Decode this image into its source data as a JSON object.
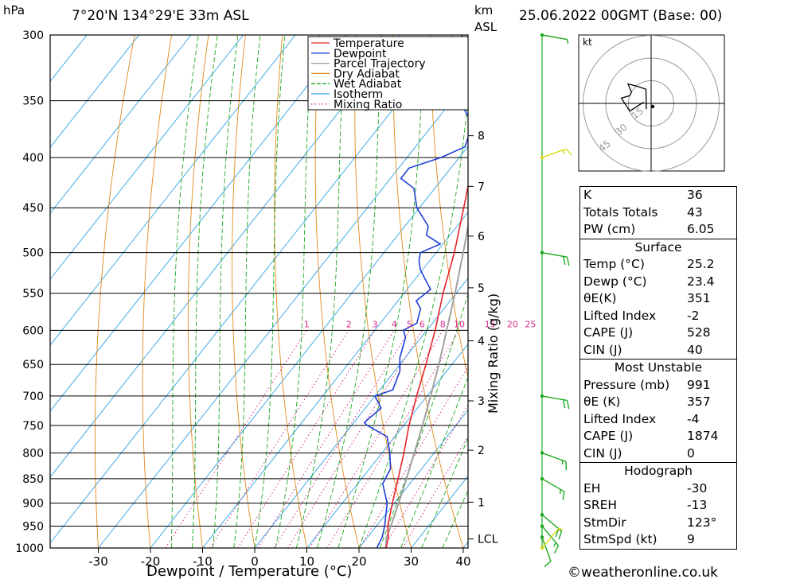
{
  "header": {
    "pressure_unit": "hPa",
    "location": "7°20'N  134°29'E  33m  ASL",
    "height_unit_top": "km",
    "height_unit_bottom": "ASL",
    "datetime": "25.06.2022  00GMT  (Base: 00)"
  },
  "footer": {
    "copyright": "©weatheronline.co.uk"
  },
  "chart_data": {
    "type": "line",
    "title": "",
    "xlabel": "Dewpoint / Temperature (°C)",
    "ylabel": "hPa",
    "right_axis_label": "Mixing Ratio (g/kg)",
    "log_pressure_axis": true,
    "skew": true,
    "xlim": [
      -40,
      40
    ],
    "ylim": [
      1000,
      300
    ],
    "x_ticks": [
      -30,
      -20,
      -10,
      0,
      10,
      20,
      30,
      40
    ],
    "pressure_ticks": [
      300,
      350,
      400,
      450,
      500,
      550,
      600,
      650,
      700,
      750,
      800,
      850,
      900,
      950,
      1000
    ],
    "height_km_ticks": [
      {
        "label": "8",
        "p": 380
      },
      {
        "label": "7",
        "p": 428
      },
      {
        "label": "6",
        "p": 481
      },
      {
        "label": "5",
        "p": 543
      },
      {
        "label": "4",
        "p": 615
      },
      {
        "label": "3",
        "p": 708
      },
      {
        "label": "2",
        "p": 795
      },
      {
        "label": "1",
        "p": 898
      },
      {
        "label": "LCL",
        "p": 979
      }
    ],
    "mixing_ratio_labels": [
      "1",
      "2",
      "3",
      "4",
      "5",
      "6",
      "8",
      "10",
      "15",
      "20",
      "25"
    ],
    "legend": [
      {
        "name": "Temperature",
        "color": "#e8232b",
        "style": "solid"
      },
      {
        "name": "Dewpoint",
        "color": "#1f3fd8",
        "style": "solid"
      },
      {
        "name": "Parcel Trajectory",
        "color": "#a0a0a0",
        "style": "solid"
      },
      {
        "name": "Dry Adiabat",
        "color": "#e28a1c",
        "style": "solid"
      },
      {
        "name": "Wet Adiabat",
        "color": "#1ca81c",
        "style": "dashed"
      },
      {
        "name": "Isotherm",
        "color": "#2ea3e6",
        "style": "solid"
      },
      {
        "name": "Mixing Ratio",
        "color": "#d62a8a",
        "style": "dotted"
      }
    ],
    "legend_position": "top-left",
    "series": [
      {
        "name": "Temperature",
        "color": "#e8232b",
        "points": [
          [
            1000,
            25.2
          ],
          [
            975,
            24.0
          ],
          [
            950,
            22.2
          ],
          [
            900,
            19.6
          ],
          [
            850,
            17.0
          ],
          [
            800,
            14.2
          ],
          [
            750,
            11.0
          ],
          [
            700,
            8.0
          ],
          [
            650,
            5.0
          ],
          [
            600,
            1.6
          ],
          [
            550,
            -2.5
          ],
          [
            500,
            -6.5
          ],
          [
            450,
            -11.5
          ],
          [
            400,
            -17.2
          ],
          [
            380,
            -19.5
          ],
          [
            350,
            -24.0
          ],
          [
            330,
            -28.0
          ]
        ]
      },
      {
        "name": "Dewpoint",
        "color": "#1f3fd8",
        "points": [
          [
            1000,
            23.4
          ],
          [
            975,
            22.8
          ],
          [
            950,
            21.6
          ],
          [
            900,
            18.6
          ],
          [
            860,
            14.8
          ],
          [
            830,
            14.0
          ],
          [
            800,
            11.5
          ],
          [
            770,
            8.5
          ],
          [
            750,
            3.0
          ],
          [
            745,
            2.0
          ],
          [
            720,
            3.0
          ],
          [
            700,
            0.0
          ],
          [
            690,
            2.5
          ],
          [
            660,
            1.0
          ],
          [
            640,
            -1.0
          ],
          [
            610,
            -3.0
          ],
          [
            600,
            -4.5
          ],
          [
            590,
            -3.0
          ],
          [
            570,
            -4.5
          ],
          [
            560,
            -6.5
          ],
          [
            545,
            -5.5
          ],
          [
            530,
            -8.5
          ],
          [
            520,
            -10.5
          ],
          [
            510,
            -12.0
          ],
          [
            500,
            -13.0
          ],
          [
            490,
            -10.5
          ],
          [
            480,
            -14.5
          ],
          [
            470,
            -15.5
          ],
          [
            450,
            -20.5
          ],
          [
            430,
            -24.0
          ],
          [
            420,
            -28.0
          ],
          [
            410,
            -28.0
          ],
          [
            400,
            -23.5
          ],
          [
            390,
            -20.5
          ],
          [
            370,
            -22.5
          ],
          [
            355,
            -27.0
          ],
          [
            335,
            -33.0
          ],
          [
            300,
            -38.0
          ]
        ]
      },
      {
        "name": "Parcel Trajectory",
        "color": "#a0a0a0",
        "points": [
          [
            1000,
            25.2
          ],
          [
            979,
            23.8
          ],
          [
            950,
            22.8
          ],
          [
            900,
            20.8
          ],
          [
            850,
            18.6
          ],
          [
            800,
            16.2
          ],
          [
            750,
            13.6
          ],
          [
            700,
            10.7
          ],
          [
            650,
            7.5
          ],
          [
            600,
            3.8
          ],
          [
            550,
            -0.2
          ],
          [
            500,
            -4.8
          ],
          [
            450,
            -10.0
          ],
          [
            400,
            -16.0
          ],
          [
            370,
            -20.0
          ]
        ]
      }
    ],
    "winds": [
      {
        "p": 300,
        "dir": 100,
        "kt": 5
      },
      {
        "p": 400,
        "dir": 70,
        "kt": 15
      },
      {
        "p": 500,
        "dir": 100,
        "kt": 20
      },
      {
        "p": 700,
        "dir": 100,
        "kt": 20
      },
      {
        "p": 800,
        "dir": 110,
        "kt": 15
      },
      {
        "p": 850,
        "dir": 120,
        "kt": 15
      },
      {
        "p": 925,
        "dir": 130,
        "kt": 20
      },
      {
        "p": 950,
        "dir": 140,
        "kt": 15
      },
      {
        "p": 975,
        "dir": 160,
        "kt": 10
      },
      {
        "p": 1000,
        "dir": 40,
        "kt": 5
      }
    ]
  },
  "hodograph": {
    "unit": "kt",
    "ring_labels": [
      "15",
      "30",
      "45"
    ]
  },
  "indices": {
    "K": {
      "label": "K",
      "value": "36"
    },
    "TT": {
      "label": "Totals Totals",
      "value": "43"
    },
    "PW": {
      "label": "PW (cm)",
      "value": "6.05"
    }
  },
  "surface": {
    "title": "Surface",
    "temp": {
      "label": "Temp (°C)",
      "value": "25.2"
    },
    "dewp": {
      "label": "Dewp (°C)",
      "value": "23.4"
    },
    "theta_e": {
      "label": "θE(K)",
      "value": "351"
    },
    "lifted": {
      "label": "Lifted Index",
      "value": "-2"
    },
    "cape": {
      "label": "CAPE (J)",
      "value": "528"
    },
    "cin": {
      "label": "CIN (J)",
      "value": "40"
    }
  },
  "most_unstable": {
    "title": "Most Unstable",
    "pressure": {
      "label": "Pressure (mb)",
      "value": "991"
    },
    "theta_e": {
      "label": "θE (K)",
      "value": "357"
    },
    "lifted": {
      "label": "Lifted Index",
      "value": "-4"
    },
    "cape": {
      "label": "CAPE (J)",
      "value": "1874"
    },
    "cin": {
      "label": "CIN (J)",
      "value": "0"
    }
  },
  "hodograph_stats": {
    "title": "Hodograph",
    "eh": {
      "label": "EH",
      "value": "-30"
    },
    "sreh": {
      "label": "SREH",
      "value": "-13"
    },
    "stmdir": {
      "label": "StmDir",
      "value": "123°"
    },
    "stmspd": {
      "label": "StmSpd (kt)",
      "value": "9"
    }
  },
  "colors": {
    "temperature": "#e8232b",
    "dewpoint": "#1f3fd8",
    "parcel": "#a0a0a0",
    "dry_adiabat": "#e28a1c",
    "wet_adiabat": "#1ca81c",
    "isotherm": "#2ea3e6",
    "mixing_ratio": "#d62a8a",
    "wind_barb": "#1ca81c",
    "wind_barb_low": "#d9d91a"
  }
}
